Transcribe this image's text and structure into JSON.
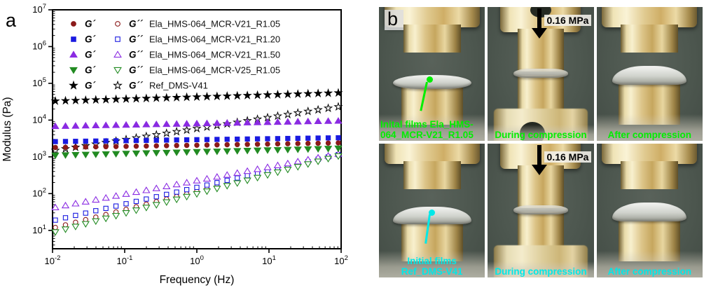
{
  "panels": {
    "a_label": "a",
    "b_label": "b"
  },
  "chart_data": {
    "type": "scatter",
    "title": "",
    "xlabel": "Frequency (Hz)",
    "ylabel": "Modulus (Pa)",
    "x_scale": "log",
    "y_scale": "log",
    "xlim": [
      0.01,
      100
    ],
    "ylim": [
      3.2,
      10000000
    ],
    "grid": false,
    "x_tick_exponents": [
      -2,
      -1,
      0,
      1,
      2
    ],
    "y_tick_exponents": [
      1,
      2,
      3,
      4,
      5,
      6,
      7
    ],
    "legend": {
      "position": "top-left-inside",
      "gp_label": "G´",
      "gpp_label": "G´´",
      "rows": [
        {
          "sample": "Ela_HMS-064_MCR-V21_R1.05",
          "color": "#8B1A1A",
          "symbol": "circle"
        },
        {
          "sample": "Ela_HMS-064_MCR-V21_R1.20",
          "color": "#1A1AE0",
          "symbol": "square"
        },
        {
          "sample": "Ela_HMS-064_MCR-V21_R1.50",
          "color": "#8A2BE2",
          "symbol": "triangle-up"
        },
        {
          "sample": "Ela_HMS-064_MCR-V25_R1.05",
          "color": "#228B22",
          "symbol": "triangle-down"
        },
        {
          "sample": "Ref_DMS-V41",
          "color": "#000000",
          "symbol": "star"
        }
      ]
    },
    "frequencies_hz": [
      0.01,
      0.0139,
      0.0193,
      0.0268,
      0.0373,
      0.0518,
      0.072,
      0.1,
      0.139,
      0.193,
      0.268,
      0.373,
      0.518,
      0.72,
      1,
      1.39,
      1.93,
      2.68,
      3.73,
      5.18,
      7.2,
      10,
      13.9,
      19.3,
      26.8,
      37.3,
      51.8,
      72,
      100
    ],
    "series": [
      {
        "name": "G´´ Ela_HMS-064_MCR-V21_R1.05",
        "symbol": "circle",
        "color": "#8B1A1A",
        "fill": "open",
        "values": [
          12,
          14.1,
          16.6,
          19.5,
          22.9,
          26.9,
          31.7,
          37.3,
          43.8,
          51.5,
          60.6,
          71.2,
          83.8,
          98.5,
          116,
          136,
          160,
          188,
          222,
          261,
          306,
          360,
          424,
          498,
          586,
          689,
          810,
          953,
          1100
        ]
      },
      {
        "name": "G´´ Ela_HMS-064_MCR-V21_R1.20",
        "symbol": "square",
        "color": "#1A1AE0",
        "fill": "open",
        "values": [
          19,
          22,
          25.5,
          29.5,
          34.2,
          39.6,
          45.8,
          53,
          61.4,
          71.1,
          82.3,
          95.3,
          110,
          128,
          148,
          171,
          198,
          230,
          266,
          308,
          357,
          414,
          479,
          554,
          642,
          743,
          860,
          996,
          1150
        ]
      },
      {
        "name": "G´´ Ela_HMS-064_MCR-V21_R1.50",
        "symbol": "triangle-up",
        "color": "#8A2BE2",
        "fill": "open",
        "values": [
          42,
          47.4,
          53.4,
          60.2,
          67.9,
          76.5,
          86.2,
          97.2,
          110,
          123,
          139,
          157,
          177,
          199,
          225,
          253,
          285,
          322,
          363,
          409,
          461,
          520,
          586,
          660,
          744,
          839,
          946,
          1066,
          1200
        ]
      },
      {
        "name": "G´´ Ela_HMS-064_MCR-V25_R1.05",
        "symbol": "triangle-down",
        "color": "#228B22",
        "fill": "open",
        "values": [
          9,
          10.7,
          12.7,
          15,
          17.8,
          21.1,
          25,
          29.7,
          35.2,
          41.7,
          49.4,
          58.6,
          69.5,
          82.4,
          97.7,
          116,
          137,
          163,
          193,
          229,
          271,
          321,
          381,
          452,
          535,
          635,
          753,
          893,
          1050
        ]
      },
      {
        "name": "G´´ Ref_DMS-V41",
        "symbol": "star",
        "color": "#000000",
        "fill": "open",
        "values": [
          1500,
          1654,
          1824,
          2011,
          2218,
          2446,
          2697,
          2974,
          3279,
          3616,
          3988,
          4397,
          4849,
          5347,
          5896,
          6502,
          7170,
          7906,
          8718,
          9614,
          10601,
          11690,
          12891,
          14215,
          15675,
          17285,
          19061,
          21019,
          23000
        ]
      },
      {
        "name": "G´ Ela_HMS-064_MCR-V25_R1.05",
        "symbol": "triangle-down",
        "color": "#228B22",
        "fill": "filled",
        "values": [
          1100,
          1117,
          1135,
          1152,
          1170,
          1189,
          1207,
          1226,
          1245,
          1265,
          1285,
          1305,
          1325,
          1346,
          1367,
          1388,
          1410,
          1432,
          1454,
          1477,
          1500,
          1524,
          1548,
          1572,
          1596,
          1621,
          1647,
          1672,
          1700
        ]
      },
      {
        "name": "G´ Ela_HMS-064_MCR-V21_R1.05",
        "symbol": "circle",
        "color": "#8B1A1A",
        "fill": "filled",
        "values": [
          1800,
          1818,
          1837,
          1856,
          1875,
          1894,
          1913,
          1932,
          1952,
          1972,
          1992,
          2013,
          2033,
          2054,
          2074,
          2096,
          2117,
          2139,
          2161,
          2183,
          2205,
          2228,
          2250,
          2273,
          2296,
          2320,
          2344,
          2368,
          2400
        ]
      },
      {
        "name": "G´ Ela_HMS-064_MCR-V21_R1.20",
        "symbol": "square",
        "color": "#1A1AE0",
        "fill": "filled",
        "values": [
          2600,
          2622,
          2645,
          2667,
          2690,
          2713,
          2736,
          2760,
          2783,
          2807,
          2831,
          2856,
          2880,
          2905,
          2930,
          2955,
          2980,
          3006,
          3032,
          3058,
          3084,
          3111,
          3137,
          3164,
          3192,
          3219,
          3247,
          3275,
          3300
        ]
      },
      {
        "name": "G´ Ela_HMS-064_MCR-V21_R1.50",
        "symbol": "triangle-up",
        "color": "#8A2BE2",
        "fill": "filled",
        "values": [
          6800,
          6882,
          6965,
          7049,
          7134,
          7220,
          7307,
          7395,
          7484,
          7575,
          7666,
          7759,
          7852,
          7947,
          8043,
          8140,
          8238,
          8338,
          8438,
          8540,
          8643,
          8747,
          8853,
          8960,
          9068,
          9177,
          9288,
          9400,
          9500
        ]
      },
      {
        "name": "G´ Ref_DMS-V41",
        "symbol": "star",
        "color": "#000000",
        "fill": "filled",
        "values": [
          33000,
          33610,
          34230,
          34860,
          35510,
          36160,
          36830,
          37510,
          38200,
          38910,
          39630,
          40360,
          41100,
          41860,
          42630,
          43420,
          44220,
          45040,
          45870,
          46720,
          47580,
          48460,
          49350,
          50260,
          51190,
          52140,
          53100,
          54080,
          55000
        ]
      }
    ]
  },
  "panel_b": {
    "pressure_label": "0.16 MPa",
    "rows": [
      {
        "caption_color": "#00EE00"
      },
      {
        "caption_color": "#00E8E8"
      }
    ],
    "cells": [
      {
        "row": 0,
        "col": 0,
        "type": "initial",
        "align": "left",
        "callout": true,
        "caption_lines": [
          "Inital films Ela_HMS-",
          "064_MCR-V21_R1.05"
        ]
      },
      {
        "row": 0,
        "col": 1,
        "type": "during",
        "arrow": true,
        "caption_lines": [
          "During compression"
        ]
      },
      {
        "row": 0,
        "col": 2,
        "type": "after",
        "caption_lines": [
          "After compression"
        ]
      },
      {
        "row": 1,
        "col": 0,
        "type": "initial",
        "callout": true,
        "caption_lines": [
          "Initial films",
          "Ref_DMS-V41"
        ]
      },
      {
        "row": 1,
        "col": 1,
        "type": "during",
        "arrow": true,
        "caption_lines": [
          "During compression"
        ]
      },
      {
        "row": 1,
        "col": 2,
        "type": "after",
        "caption_lines": [
          "After compression"
        ]
      }
    ]
  }
}
